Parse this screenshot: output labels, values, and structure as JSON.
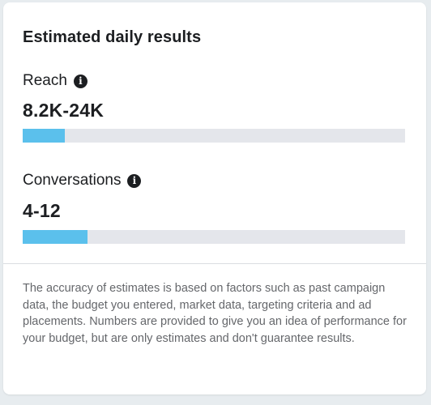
{
  "card": {
    "title": "Estimated daily results",
    "metrics": [
      {
        "label": "Reach",
        "info_icon": "info-icon",
        "value": "8.2K-24K",
        "bar_fill_fraction": 0.11
      },
      {
        "label": "Conversations",
        "info_icon": "info-icon",
        "value": "4-12",
        "bar_fill_fraction": 0.17
      }
    ],
    "disclaimer": "The accuracy of estimates is based on factors such as past campaign data, the budget you entered, market data, targeting criteria and ad placements. Numbers are provided to give you an idea of performance for your budget, but are only estimates and don't guarantee results."
  },
  "colors": {
    "bar_fill": "#5bc0ec",
    "bar_track": "#e4e6eb",
    "text_primary": "#1c1e21",
    "text_secondary": "#65676b"
  }
}
